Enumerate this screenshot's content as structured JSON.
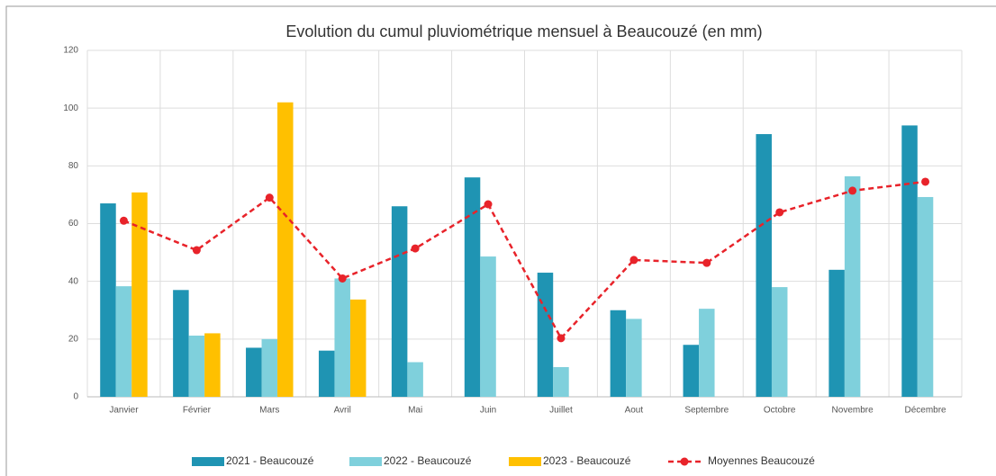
{
  "chart_data": {
    "type": "bar",
    "title": "Evolution du cumul pluviométrique mensuel à Beaucouzé (en mm)",
    "categories": [
      "Janvier",
      "Février",
      "Mars",
      "Avril",
      "Mai",
      "Juin",
      "Juillet",
      "Aout",
      "Septembre",
      "Octobre",
      "Novembre",
      "Décembre"
    ],
    "series": [
      {
        "name": "2021  - Beaucouzé",
        "color": "#1f94b3",
        "type": "bar",
        "values": [
          67,
          37,
          17,
          16,
          66,
          76,
          43,
          30,
          18,
          91,
          44,
          94
        ]
      },
      {
        "name": "2022  - Beaucouzé",
        "color": "#7fd0dc",
        "type": "bar",
        "values": [
          38.3,
          21.2,
          20,
          41,
          12,
          48.6,
          10.3,
          27,
          30.5,
          38,
          76.4,
          69.2
        ]
      },
      {
        "name": "2023  - Beaucouzé",
        "color": "#ffc000",
        "type": "bar",
        "values": [
          70.8,
          22,
          102,
          33.7,
          null,
          null,
          null,
          null,
          null,
          null,
          null,
          null
        ]
      },
      {
        "name": "Moyennes Beaucouzé",
        "color": "#e8232a",
        "type": "line",
        "values": [
          61,
          50.8,
          69,
          41,
          51.4,
          66.7,
          20.3,
          47.4,
          46.4,
          63.9,
          71.4,
          74.5
        ]
      }
    ],
    "ylim": [
      0,
      120
    ],
    "yticks": [
      0,
      20,
      40,
      60,
      80,
      100,
      120
    ],
    "grid": true,
    "legend": "bottom"
  }
}
